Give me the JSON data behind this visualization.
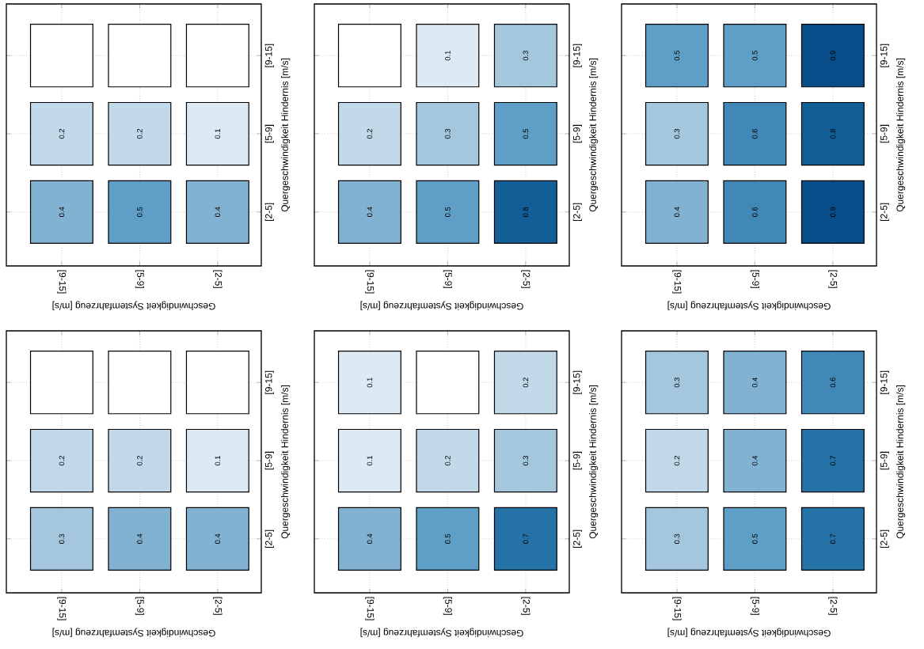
{
  "chart_data": [
    {
      "type": "heatmap",
      "xlabel": "Geschwindigkeit Systemfahrzeug [m/s]",
      "ylabel": "Quergeschwindigkeit Hindernis [m/s]",
      "categories": [
        "[9-15]",
        "[5-9]",
        "[2-5]"
      ],
      "y_categories": [
        "[9-15]",
        "[5-9]",
        "[2-5]"
      ],
      "grid": true,
      "data_labels": true,
      "cells": [
        [
          null,
          null,
          null
        ],
        [
          0.2,
          0.2,
          0.1
        ],
        [
          0.4,
          0.5,
          0.4
        ]
      ]
    },
    {
      "type": "heatmap",
      "xlabel": "Geschwindigkeit Systemfahrzeug [m/s]",
      "ylabel": "Quergeschwindigkeit Hindernis [m/s]",
      "categories": [
        "[9-15]",
        "[5-9]",
        "[2-5]"
      ],
      "y_categories": [
        "[9-15]",
        "[5-9]",
        "[2-5]"
      ],
      "grid": true,
      "data_labels": true,
      "cells": [
        [
          null,
          0.1,
          0.3
        ],
        [
          0.2,
          0.3,
          0.5
        ],
        [
          0.4,
          0.5,
          0.8
        ]
      ]
    },
    {
      "type": "heatmap",
      "xlabel": "Geschwindigkeit Systemfahrzeug [m/s]",
      "ylabel": "Quergeschwindigkeit Hindernis [m/s]",
      "categories": [
        "[9-15]",
        "[5-9]",
        "[2-5]"
      ],
      "y_categories": [
        "[9-15]",
        "[5-9]",
        "[2-5]"
      ],
      "grid": true,
      "data_labels": true,
      "cells": [
        [
          0.5,
          0.5,
          0.9
        ],
        [
          0.3,
          0.6,
          0.8
        ],
        [
          0.4,
          0.6,
          0.9
        ]
      ]
    },
    {
      "type": "heatmap",
      "xlabel": "Geschwindigkeit Systemfahrzeug [m/s]",
      "ylabel": "Quergeschwindigkeit Hindernis [m/s]",
      "categories": [
        "[9-15]",
        "[5-9]",
        "[2-5]"
      ],
      "y_categories": [
        "[9-15]",
        "[5-9]",
        "[2-5]"
      ],
      "grid": true,
      "data_labels": true,
      "cells": [
        [
          null,
          null,
          null
        ],
        [
          0.2,
          0.2,
          0.1
        ],
        [
          0.3,
          0.4,
          0.4
        ]
      ]
    },
    {
      "type": "heatmap",
      "xlabel": "Geschwindigkeit Systemfahrzeug [m/s]",
      "ylabel": "Quergeschwindigkeit Hindernis [m/s]",
      "categories": [
        "[9-15]",
        "[5-9]",
        "[2-5]"
      ],
      "y_categories": [
        "[9-15]",
        "[5-9]",
        "[2-5]"
      ],
      "grid": true,
      "data_labels": true,
      "cells": [
        [
          0.1,
          null,
          0.2
        ],
        [
          0.1,
          0.2,
          0.3
        ],
        [
          0.4,
          0.5,
          0.7
        ]
      ]
    },
    {
      "type": "heatmap",
      "xlabel": "Geschwindigkeit Systemfahrzeug [m/s]",
      "ylabel": "Quergeschwindigkeit Hindernis [m/s]",
      "categories": [
        "[9-15]",
        "[5-9]",
        "[2-5]"
      ],
      "y_categories": [
        "[9-15]",
        "[5-9]",
        "[2-5]"
      ],
      "grid": true,
      "data_labels": true,
      "cells": [
        [
          0.3,
          0.4,
          0.6
        ],
        [
          0.2,
          0.4,
          0.7
        ],
        [
          0.3,
          0.5,
          0.7
        ]
      ]
    }
  ]
}
